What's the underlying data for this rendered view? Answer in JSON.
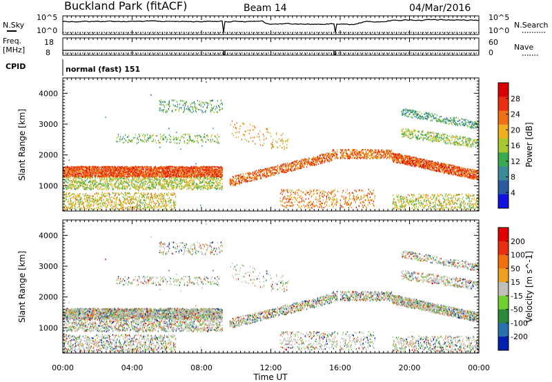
{
  "header": {
    "site": "Buckland Park (fitACF)",
    "beam": "Beam 14",
    "date": "04/Mar/2016"
  },
  "noise_panel": {
    "left_label": "N.Sky",
    "right_label": "N.Search",
    "left_ticks": [
      "10^5",
      "10^0"
    ],
    "right_ticks": [
      "10^5",
      "10^0"
    ]
  },
  "freq_panel": {
    "left_label_1": "Freq.",
    "left_label_2": "[MHz]",
    "right_label": "Nave",
    "left_ticks": [
      "18",
      "8"
    ],
    "right_ticks": [
      "60",
      "0"
    ]
  },
  "cpid_panel": {
    "label": "CPID",
    "mode": "normal (fast) 151"
  },
  "chart_data": [
    {
      "type": "heatmap",
      "name": "Power",
      "xlabel": "",
      "ylabel": "Slant Range [km]",
      "xlim_hours": [
        0,
        24
      ],
      "ylim_km": [
        180,
        4500
      ],
      "y_ticks": [
        "4000",
        "3000",
        "2000",
        "1000"
      ],
      "y_tick_values": [
        4000,
        3000,
        2000,
        1000
      ],
      "colorbar": {
        "label": "Power [dB]",
        "ticks": [
          "28",
          "24",
          "20",
          "16",
          "12",
          "8",
          "4"
        ],
        "tick_values": [
          28,
          24,
          20,
          16,
          12,
          8,
          4
        ],
        "range": [
          0,
          32
        ],
        "colors": [
          "#1010e0",
          "#2a5aa0",
          "#3a8a9a",
          "#3aaa50",
          "#a8c830",
          "#f0b020",
          "#f07018",
          "#e83010",
          "#d80000"
        ]
      }
    },
    {
      "type": "heatmap",
      "name": "Velocity",
      "xlabel": "Time UT",
      "ylabel": "Slant Range [km]",
      "xlim_hours": [
        0,
        24
      ],
      "ylim_km": [
        180,
        4500
      ],
      "x_ticks": [
        "00:00",
        "04:00",
        "08:00",
        "12:00",
        "16:00",
        "20:00",
        "00:00"
      ],
      "x_tick_hours": [
        0,
        4,
        8,
        12,
        16,
        20,
        24
      ],
      "y_ticks": [
        "4000",
        "3000",
        "2000",
        "1000"
      ],
      "y_tick_values": [
        4000,
        3000,
        2000,
        1000
      ],
      "colorbar": {
        "label": "Velocity [m s^-1]",
        "ticks": [
          "200",
          "100",
          "50",
          "15",
          "-15",
          "-50",
          "-100",
          "-200"
        ],
        "tick_values": [
          200,
          100,
          50,
          15,
          -15,
          -50,
          -100,
          -200
        ],
        "colors": [
          "#0020b0",
          "#2870b0",
          "#2a8a3a",
          "#70d030",
          "#c0c0b8",
          "#f0a020",
          "#f07010",
          "#e83010",
          "#e00000"
        ]
      }
    }
  ]
}
